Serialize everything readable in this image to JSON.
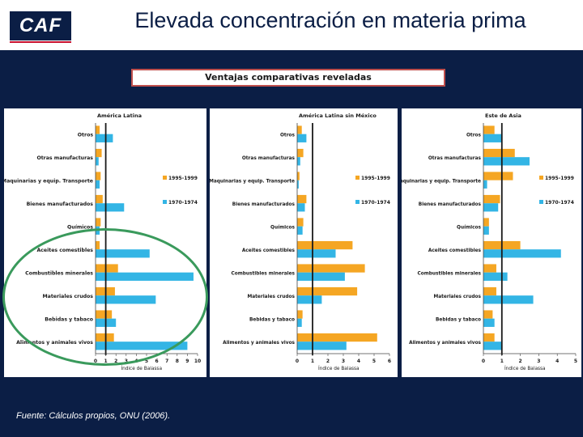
{
  "header": {
    "logo_text": "CAF",
    "title": "Elevada concentración en materia prima"
  },
  "subtitle": "Ventajas comparativas reveladas",
  "footer": {
    "source": "Fuente: Cálculos propios, ONU (2006)."
  },
  "colors": {
    "series_1995": "#f5a623",
    "series_1970": "#33b5e5",
    "reference_line": "#1a1a1a",
    "highlight_oval": "#3a9a5c"
  },
  "chart_data": [
    {
      "type": "bar",
      "orientation": "horizontal",
      "title": "América Latina",
      "xlabel": "Índice de Balassa",
      "xlim": [
        0,
        10
      ],
      "xticks": [
        "0",
        "1",
        "2",
        "3",
        "4",
        "5",
        "6",
        "7",
        "8",
        "9",
        "10"
      ],
      "reference_line": 1,
      "legend_position": "right",
      "categories": [
        "Otros",
        "Otras manufacturas",
        "Maquinarias y equip. Transporte",
        "Bienes manufacturados",
        "Químicos",
        "Aceites comestibles",
        "Combustibles minerales",
        "Materiales crudos",
        "Bebidas y tabaco",
        "Alimentos y animales vivos"
      ],
      "series": [
        {
          "name": "1995-1999",
          "values": [
            0.4,
            0.6,
            0.5,
            0.7,
            0.5,
            0.4,
            2.2,
            1.9,
            1.6,
            1.8
          ]
        },
        {
          "name": "1970-1974",
          "values": [
            1.7,
            0.3,
            0.4,
            2.8,
            0.4,
            5.3,
            9.6,
            5.9,
            2.0,
            9.0
          ]
        }
      ]
    },
    {
      "type": "bar",
      "orientation": "horizontal",
      "title": "América Latina sin México",
      "xlabel": "Índice de Balassa",
      "xlim": [
        0,
        6
      ],
      "xticks": [
        "0",
        "1",
        "2",
        "3",
        "4",
        "5",
        "6"
      ],
      "reference_line": 1,
      "legend_position": "right",
      "categories": [
        "Otros",
        "Otras manufacturas",
        "Maquinarias y equip. Transporte",
        "Bienes manufacturados",
        "Químicos",
        "Aceites comestibles",
        "Combustibles minerales",
        "Materiales crudos",
        "Bebidas y tabaco",
        "Alimentos y animales vivos"
      ],
      "series": [
        {
          "name": "1995-1999",
          "values": [
            0.3,
            0.4,
            0.15,
            0.6,
            0.4,
            3.6,
            4.4,
            3.9,
            0.35,
            5.2
          ]
        },
        {
          "name": "1970-1974",
          "values": [
            0.6,
            0.2,
            0.1,
            0.5,
            0.35,
            2.5,
            3.1,
            1.6,
            0.3,
            3.2
          ]
        }
      ]
    },
    {
      "type": "bar",
      "orientation": "horizontal",
      "title": "Este de Asia",
      "xlabel": "Índice de Balassa",
      "xlim": [
        0,
        5
      ],
      "xticks": [
        "0",
        "1",
        "2",
        "3",
        "4",
        "5"
      ],
      "reference_line": 1,
      "legend_position": "right",
      "categories": [
        "Otros",
        "Otras manufacturas",
        "Maquinarias y equip. Transporte",
        "Bienes manufacturados",
        "Químicos",
        "Aceites comestibles",
        "Combustibles minerales",
        "Materiales crudos",
        "Bebidas y tabaco",
        "Alimentos y animales vivos"
      ],
      "series": [
        {
          "name": "1995-1999",
          "values": [
            0.6,
            1.7,
            1.6,
            0.9,
            0.3,
            2.0,
            0.7,
            0.7,
            0.5,
            0.6
          ]
        },
        {
          "name": "1970-1974",
          "values": [
            1.0,
            2.5,
            0.2,
            0.8,
            0.3,
            4.2,
            1.3,
            2.7,
            0.6,
            1.0
          ]
        }
      ]
    }
  ]
}
